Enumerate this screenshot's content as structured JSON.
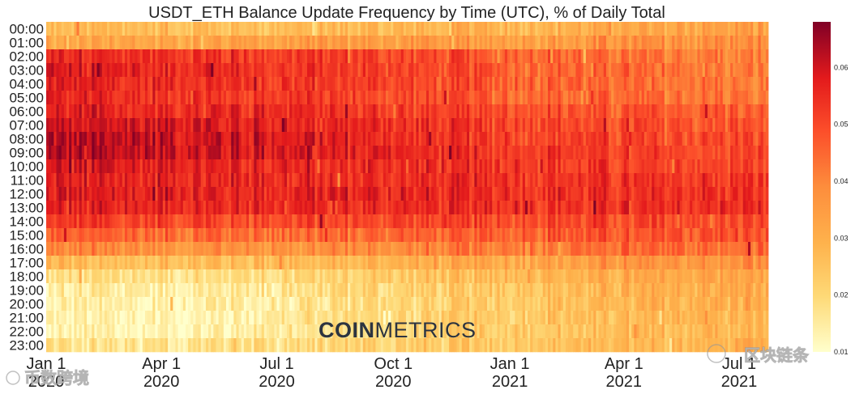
{
  "chart_data": {
    "type": "heatmap",
    "title": "USDT_ETH Balance Update Frequency by Time (UTC), % of Daily Total",
    "xlabel": "",
    "ylabel": "",
    "hours": [
      "00:00",
      "01:00",
      "02:00",
      "03:00",
      "04:00",
      "05:00",
      "06:00",
      "07:00",
      "08:00",
      "09:00",
      "10:00",
      "11:00",
      "12:00",
      "13:00",
      "14:00",
      "15:00",
      "16:00",
      "17:00",
      "18:00",
      "19:00",
      "20:00",
      "21:00",
      "22:00",
      "23:00"
    ],
    "x_ticks": [
      {
        "line1": "Jan 1",
        "line2": "2020",
        "day": 0
      },
      {
        "line1": "Apr 1",
        "line2": "2020",
        "day": 91
      },
      {
        "line1": "Jul 1",
        "line2": "2020",
        "day": 182
      },
      {
        "line1": "Oct 1",
        "line2": "2020",
        "day": 274
      },
      {
        "line1": "Jan 1",
        "line2": "2021",
        "day": 366
      },
      {
        "line1": "Apr 1",
        "line2": "2021",
        "day": 456
      },
      {
        "line1": "Jul 1",
        "line2": "2021",
        "day": 547
      }
    ],
    "n_days": 570,
    "value_range": [
      0.01,
      0.068
    ],
    "colorbar_ticks": [
      "0.01",
      "0.02",
      "0.03",
      "0.04",
      "0.05",
      "0.06"
    ],
    "approx_mean_by_period": {
      "periods": [
        "Jan-Mar 2020",
        "Apr-Jun 2020",
        "Jul-Sep 2020",
        "Oct-Dec 2020",
        "Jan-Mar 2021",
        "Apr-Jun 2021",
        "Jul 2021"
      ],
      "series": [
        {
          "name": "00:00",
          "values": [
            0.026,
            0.027,
            0.027,
            0.028,
            0.029,
            0.031,
            0.034
          ]
        },
        {
          "name": "01:00",
          "values": [
            0.032,
            0.033,
            0.034,
            0.035,
            0.035,
            0.037,
            0.038
          ]
        },
        {
          "name": "02:00",
          "values": [
            0.055,
            0.054,
            0.052,
            0.05,
            0.046,
            0.042,
            0.04
          ]
        },
        {
          "name": "03:00",
          "values": [
            0.058,
            0.056,
            0.054,
            0.05,
            0.046,
            0.043,
            0.041
          ]
        },
        {
          "name": "04:00",
          "values": [
            0.056,
            0.055,
            0.053,
            0.05,
            0.046,
            0.043,
            0.041
          ]
        },
        {
          "name": "05:00",
          "values": [
            0.055,
            0.054,
            0.052,
            0.049,
            0.046,
            0.043,
            0.042
          ]
        },
        {
          "name": "06:00",
          "values": [
            0.057,
            0.056,
            0.055,
            0.052,
            0.049,
            0.047,
            0.046
          ]
        },
        {
          "name": "07:00",
          "values": [
            0.06,
            0.059,
            0.057,
            0.054,
            0.051,
            0.049,
            0.048
          ]
        },
        {
          "name": "08:00",
          "values": [
            0.062,
            0.061,
            0.059,
            0.055,
            0.052,
            0.05,
            0.049
          ]
        },
        {
          "name": "09:00",
          "values": [
            0.062,
            0.061,
            0.059,
            0.056,
            0.053,
            0.051,
            0.05
          ]
        },
        {
          "name": "10:00",
          "values": [
            0.058,
            0.057,
            0.056,
            0.055,
            0.053,
            0.051,
            0.051
          ]
        },
        {
          "name": "11:00",
          "values": [
            0.057,
            0.056,
            0.055,
            0.055,
            0.054,
            0.053,
            0.052
          ]
        },
        {
          "name": "12:00",
          "values": [
            0.058,
            0.057,
            0.056,
            0.056,
            0.055,
            0.054,
            0.054
          ]
        },
        {
          "name": "13:00",
          "values": [
            0.057,
            0.056,
            0.055,
            0.055,
            0.055,
            0.054,
            0.054
          ]
        },
        {
          "name": "14:00",
          "values": [
            0.052,
            0.051,
            0.05,
            0.05,
            0.05,
            0.05,
            0.05
          ]
        },
        {
          "name": "15:00",
          "values": [
            0.045,
            0.044,
            0.044,
            0.045,
            0.047,
            0.048,
            0.048
          ]
        },
        {
          "name": "16:00",
          "values": [
            0.039,
            0.038,
            0.038,
            0.04,
            0.042,
            0.044,
            0.044
          ]
        },
        {
          "name": "17:00",
          "values": [
            0.027,
            0.026,
            0.027,
            0.03,
            0.033,
            0.036,
            0.037
          ]
        },
        {
          "name": "18:00",
          "values": [
            0.018,
            0.018,
            0.02,
            0.024,
            0.028,
            0.031,
            0.033
          ]
        },
        {
          "name": "19:00",
          "values": [
            0.015,
            0.014,
            0.017,
            0.021,
            0.025,
            0.029,
            0.031
          ]
        },
        {
          "name": "20:00",
          "values": [
            0.014,
            0.013,
            0.016,
            0.02,
            0.024,
            0.028,
            0.03
          ]
        },
        {
          "name": "21:00",
          "values": [
            0.013,
            0.012,
            0.016,
            0.02,
            0.024,
            0.027,
            0.029
          ]
        },
        {
          "name": "22:00",
          "values": [
            0.013,
            0.012,
            0.016,
            0.02,
            0.024,
            0.027,
            0.029
          ]
        },
        {
          "name": "23:00",
          "values": [
            0.017,
            0.016,
            0.019,
            0.022,
            0.025,
            0.028,
            0.03
          ]
        }
      ]
    },
    "colors": {
      "low": "#ffffcc",
      "mid1": "#fed976",
      "mid2": "#feb24c",
      "mid3": "#fd8d3c",
      "mid4": "#fc4e2a",
      "mid5": "#e31a1c",
      "high": "#800026"
    }
  },
  "logo": {
    "bold": "COIN",
    "light": "METRICS"
  },
  "watermarks": {
    "left": "币数跨境",
    "right": "区块链条"
  }
}
